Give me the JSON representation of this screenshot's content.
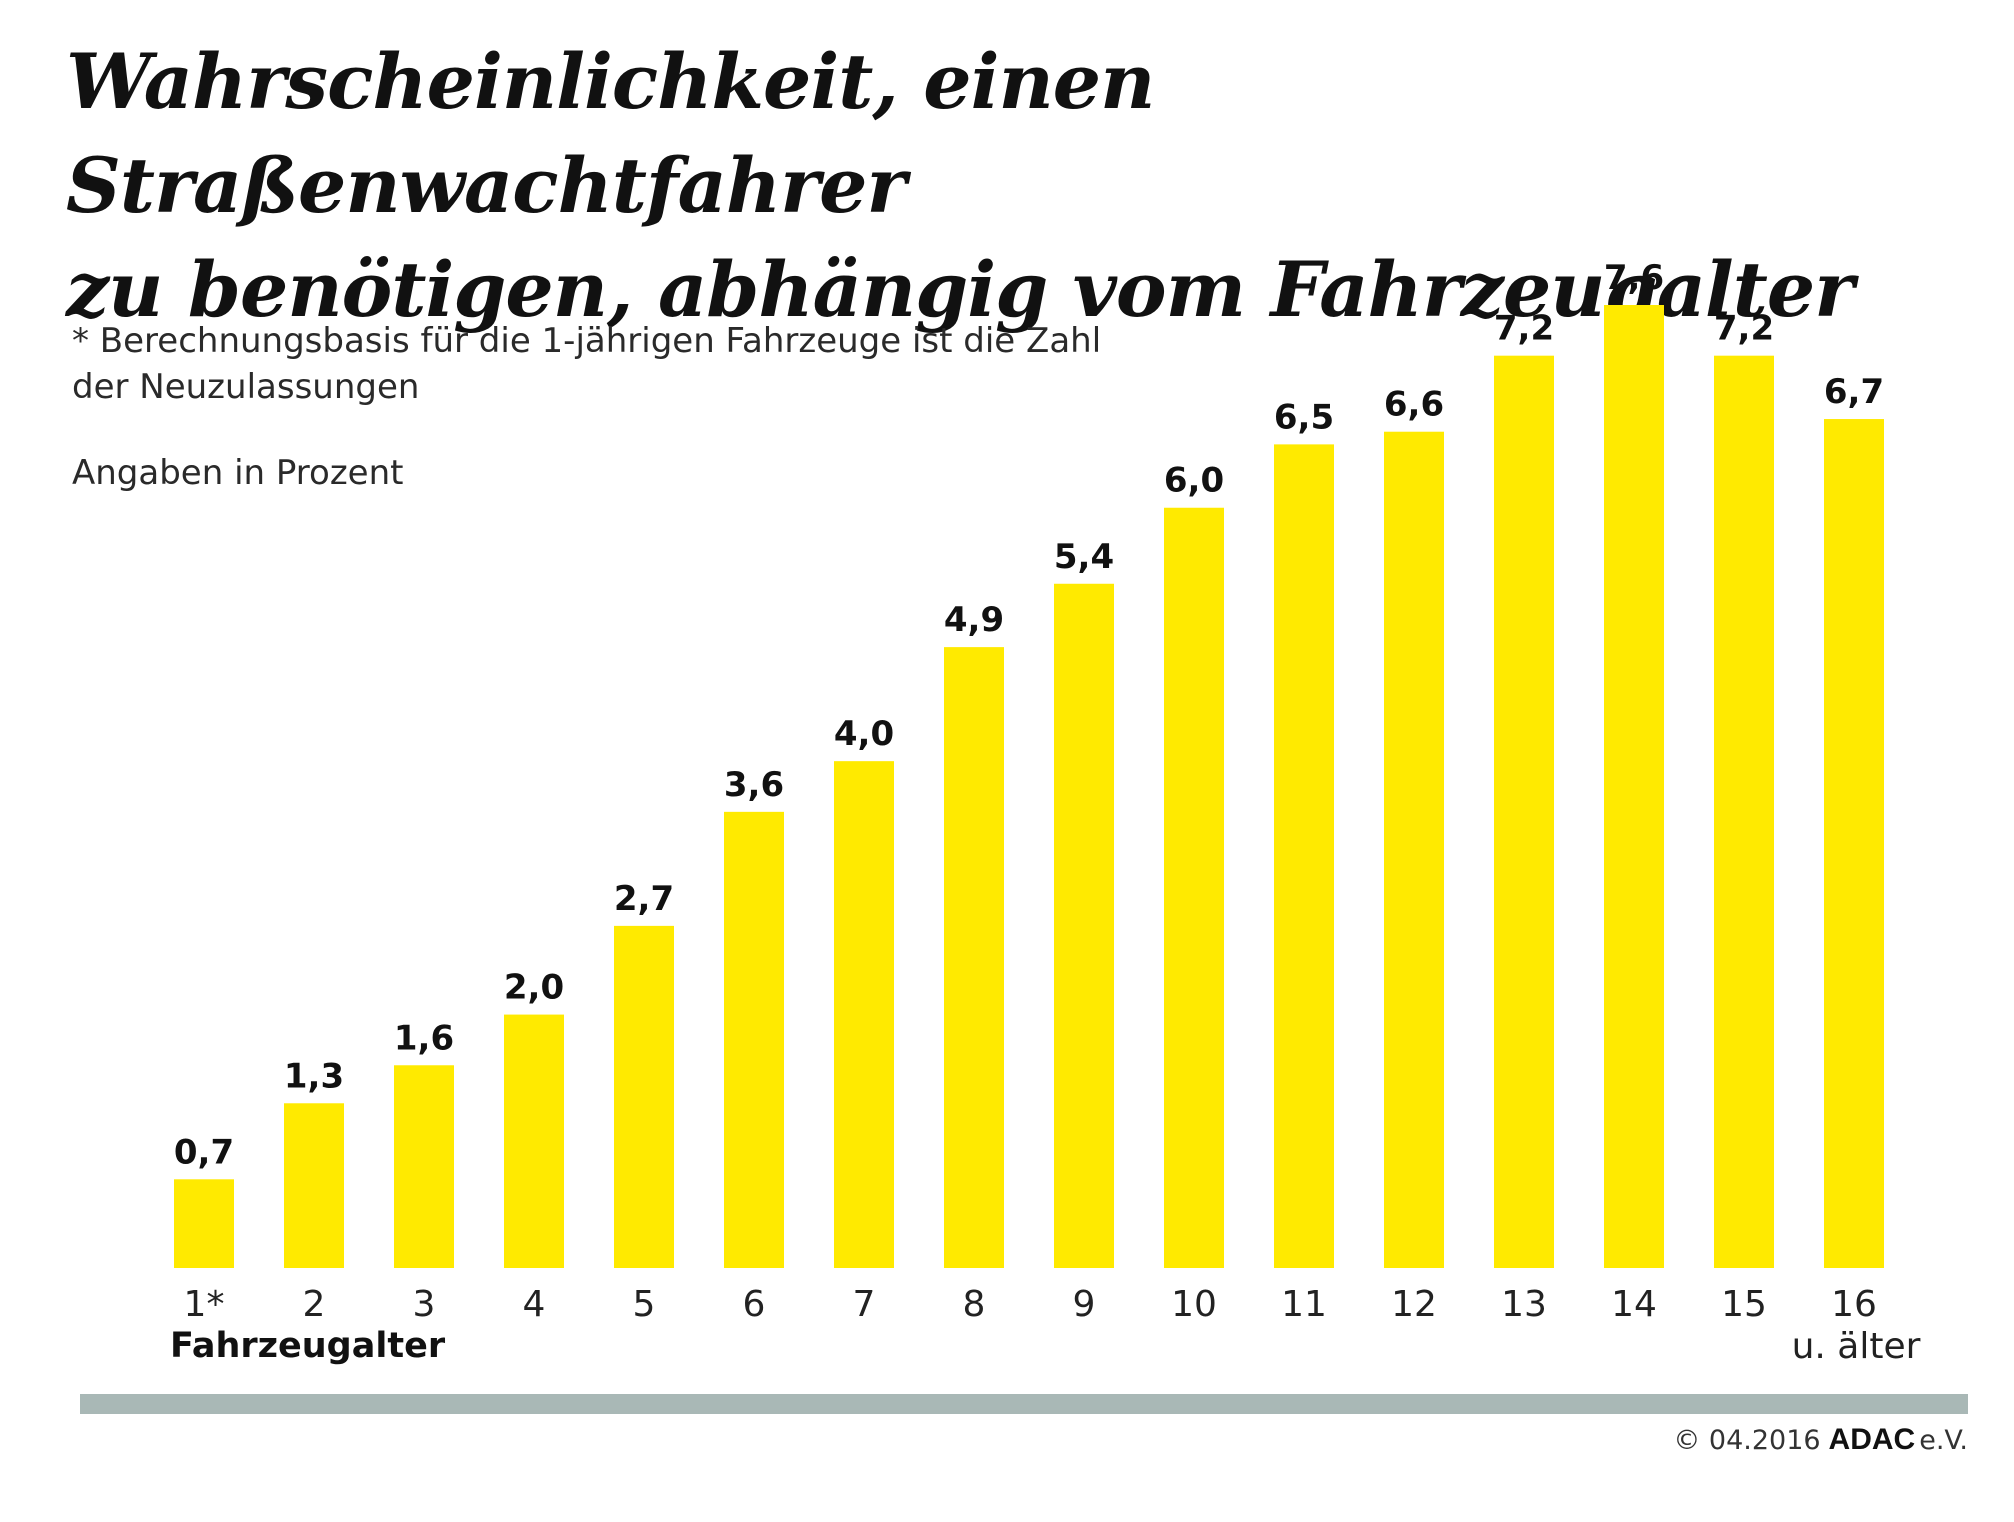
{
  "title_line1": "Wahrscheinlichkeit, einen Straßenwachtfahrer",
  "title_line2": "zu benötigen, abhängig vom Fahrzeugalter",
  "footnote_line1": "* Berechnungsbasis für die 1-jährigen Fahrzeuge ist die Zahl",
  "footnote_line2": "der Neuzulassungen",
  "unit_note": "Angaben in Prozent",
  "colors": {
    "bar": "#FFEA00",
    "rule": "#A9B8B6",
    "text": "#111111"
  },
  "chart_data": {
    "type": "bar",
    "categories": [
      "1*",
      "2",
      "3",
      "4",
      "5",
      "6",
      "7",
      "8",
      "9",
      "10",
      "11",
      "12",
      "13",
      "14",
      "15",
      "16"
    ],
    "category_extra": "u. älter",
    "values": [
      0.7,
      1.3,
      1.6,
      2.0,
      2.7,
      3.6,
      4.0,
      4.9,
      5.4,
      6.0,
      6.5,
      6.6,
      7.2,
      7.6,
      7.2,
      6.7
    ],
    "value_labels": [
      "0,7",
      "1,3",
      "1,6",
      "2,0",
      "2,7",
      "3,6",
      "4,0",
      "4,9",
      "5,4",
      "6,0",
      "6,5",
      "6,6",
      "7,2",
      "7,6",
      "7,2",
      "6,7"
    ],
    "xlabel": "Fahrzeugalter",
    "ylabel": "",
    "ylim": [
      0,
      7.6
    ],
    "grid": false,
    "legend": "none"
  },
  "credit": {
    "date": "© 04.2016",
    "brand": "ADAC",
    "suffix": "e.V."
  }
}
